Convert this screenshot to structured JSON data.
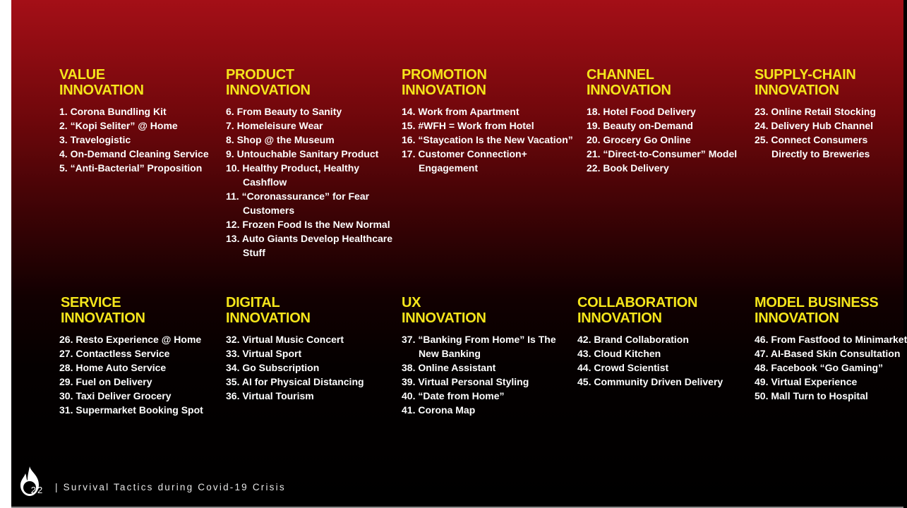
{
  "footer": {
    "page": "22",
    "title": "| Survival Tactics during Covid-19 Crisis"
  },
  "columns": [
    {
      "head1": "VALUE",
      "head2": "INNOVATION",
      "items": [
        "1. Corona Bundling Kit",
        "2. “Kopi Seliter” @ Home",
        "3. Travelogistic",
        "4. On-Demand Cleaning Service",
        "5. “Anti-Bacterial” Proposition"
      ]
    },
    {
      "head1": "PRODUCT",
      "head2": "INNOVATION",
      "items": [
        "6. From Beauty to Sanity",
        "7. Homeleisure Wear",
        "8. Shop @ the Museum",
        "9. Untouchable Sanitary Product",
        "10. Healthy Product, Healthy Cashflow",
        "11. “Coronassurance” for Fear Customers",
        "12. Frozen Food Is the New Normal",
        "13. Auto Giants Develop Healthcare Stuff"
      ]
    },
    {
      "head1": "PROMOTION",
      "head2": "INNOVATION",
      "items": [
        "14. Work from Apartment",
        "15. #WFH = Work from Hotel",
        "16. “Staycation Is the New Vacation”",
        "17. Customer Connection+ Engagement"
      ]
    },
    {
      "head1": "CHANNEL",
      "head2": "INNOVATION",
      "items": [
        "18. Hotel Food Delivery",
        "19. Beauty on-Demand",
        "20. Grocery Go Online",
        "21. “Direct-to-Consumer” Model",
        "22. Book Delivery"
      ]
    },
    {
      "head1": "SUPPLY-CHAIN",
      "head2": "INNOVATION",
      "items": [
        "23. Online Retail Stocking",
        "24. Delivery Hub Channel",
        "25. Connect Consumers Directly to Breweries"
      ]
    },
    {
      "head1": "SERVICE",
      "head2": "INNOVATION",
      "items": [
        "26. Resto Experience @ Home",
        "27. Contactless Service",
        "28. Home Auto Service",
        "29. Fuel on Delivery",
        "30. Taxi Deliver Grocery",
        "31. Supermarket Booking Spot"
      ]
    },
    {
      "head1": "DIGITAL",
      "head2": "INNOVATION",
      "items": [
        "32. Virtual Music Concert",
        "33. Virtual Sport",
        "34. Go Subscription",
        "35. AI for Physical Distancing",
        "36. Virtual Tourism"
      ]
    },
    {
      "head1": "UX",
      "head2": "INNOVATION",
      "items": [
        "37. “Banking From Home” Is The New Banking",
        "38. Online Assistant",
        "39. Virtual Personal Styling",
        "40. “Date from Home”",
        "41. Corona Map"
      ]
    },
    {
      "head1": "COLLABORATION",
      "head2": "INNOVATION",
      "items": [
        "42. Brand Collaboration",
        "43. Cloud Kitchen",
        "44. Crowd Scientist",
        "45. Community Driven Delivery"
      ]
    },
    {
      "head1": "MODEL BUSINESS",
      "head2": "INNOVATION",
      "items": [
        "46. From Fastfood to Minimarket",
        "47. AI-Based Skin Consultation",
        "48. Facebook “Go Gaming”",
        "49. Virtual Experience",
        "50. Mall Turn to Hospital"
      ]
    }
  ]
}
